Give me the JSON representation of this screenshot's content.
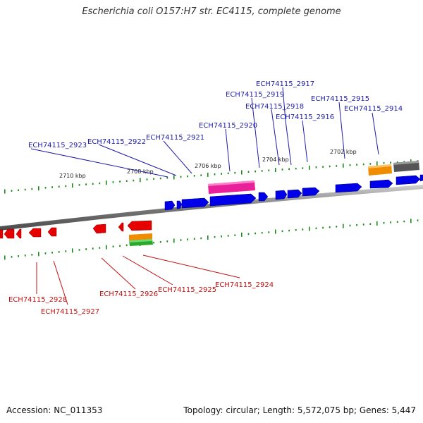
{
  "title": "Escherichia coli O157:H7 str. EC4115, complete genome",
  "footer": {
    "accession": "Accession: NC_011353",
    "summary": "Topology: circular; Length: 5,572,075 bp; Genes: 5,447"
  },
  "colors": {
    "forward_label": "#1c1ca8",
    "reverse_label": "#c41010",
    "forward_gene": "#0000e8",
    "reverse_gene": "#e60000",
    "tick": "#1a8a1a",
    "backbone": "#7a7a7a"
  },
  "scale_labels": [
    "2710 kbp",
    "2708 kbp",
    "2706 kbp",
    "2704 kbp",
    "2702 kbp"
  ],
  "forward_labels": [
    "ECH74115_2917",
    "ECH74115_2919",
    "ECH74115_2915",
    "ECH74115_2918",
    "ECH74115_2914",
    "ECH74115_2916",
    "ECH74115_2920",
    "ECH74115_2921",
    "ECH74115_2922",
    "ECH74115_2923"
  ],
  "reverse_labels": [
    "ECH74115_2924",
    "ECH74115_2925",
    "ECH74115_2926",
    "ECH74115_2928",
    "ECH74115_2927"
  ]
}
